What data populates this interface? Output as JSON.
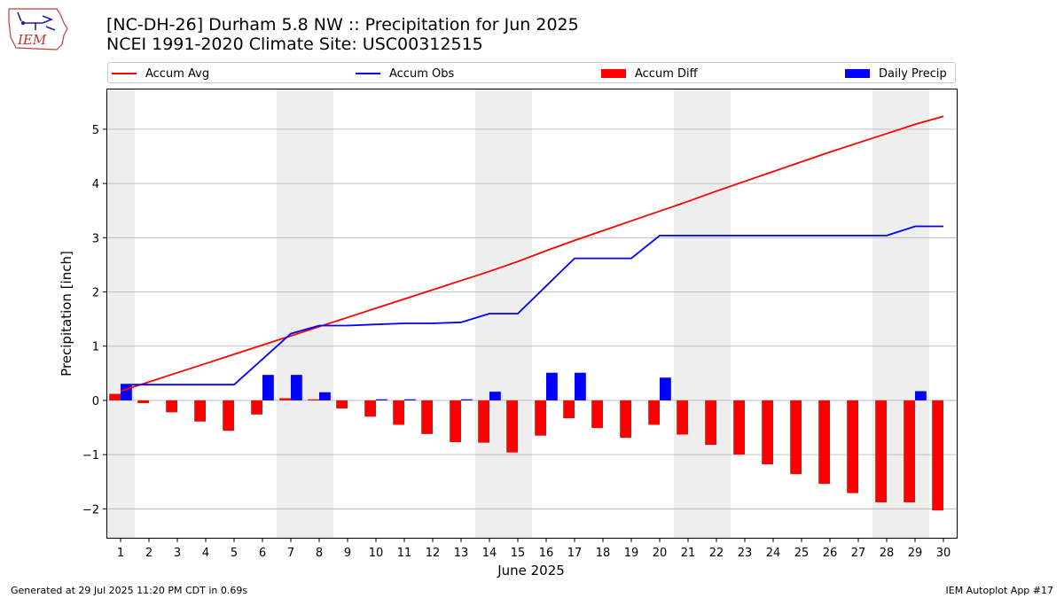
{
  "header": {
    "title_line1": "[NC-DH-26] Durham 5.8 NW :: Precipitation for Jun 2025",
    "title_line2": "NCEI 1991-2020 Climate Site: USC00312515",
    "logo_text": "IEM"
  },
  "footer": {
    "left": "Generated at 29 Jul 2025 11:20 PM CDT in 0.69s",
    "right": "IEM Autoplot App #17"
  },
  "colors": {
    "accum_avg": "#ff0000",
    "accum_obs": "#0000ff",
    "accum_diff": "#ff0000",
    "daily_precip": "#0000ff",
    "weekend_shade": "#eeeeee",
    "grid": "#b0b0b0"
  },
  "chart_data": {
    "type": "bar",
    "xlabel": "June 2025",
    "ylabel": "Precipitation [inch]",
    "xlim": [
      0.5,
      30.5
    ],
    "ylim": [
      -2.55,
      5.75
    ],
    "yticks": [
      -2,
      -1,
      0,
      1,
      2,
      3,
      4,
      5
    ],
    "ytick_labels": [
      "−2",
      "−1",
      "0",
      "1",
      "2",
      "3",
      "4",
      "5"
    ],
    "grid": "horizontal",
    "legend_position": "top, above plot",
    "days": [
      1,
      2,
      3,
      4,
      5,
      6,
      7,
      8,
      9,
      10,
      11,
      12,
      13,
      14,
      15,
      16,
      17,
      18,
      19,
      20,
      21,
      22,
      23,
      24,
      25,
      26,
      27,
      28,
      29,
      30
    ],
    "xtick_labels": [
      "1",
      "2",
      "3",
      "4",
      "5",
      "6",
      "7",
      "8",
      "9",
      "10",
      "11",
      "12",
      "13",
      "14",
      "15",
      "16",
      "17",
      "18",
      "19",
      "20",
      "21",
      "22",
      "23",
      "24",
      "25",
      "26",
      "27",
      "28",
      "29",
      "30"
    ],
    "weekend_days": [
      1,
      7,
      8,
      14,
      15,
      21,
      22,
      28,
      29
    ],
    "series": [
      {
        "name": "Accum Avg",
        "type": "line",
        "values": [
          0.17,
          0.34,
          0.51,
          0.68,
          0.85,
          1.02,
          1.19,
          1.36,
          1.53,
          1.7,
          1.87,
          2.04,
          2.21,
          2.38,
          2.56,
          2.76,
          2.95,
          3.13,
          3.31,
          3.49,
          3.67,
          3.86,
          4.04,
          4.22,
          4.4,
          4.58,
          4.75,
          4.92,
          5.09,
          5.24
        ]
      },
      {
        "name": "Accum Obs",
        "type": "line",
        "values": [
          0.29,
          0.29,
          0.29,
          0.29,
          0.29,
          0.76,
          1.23,
          1.38,
          1.38,
          1.4,
          1.42,
          1.42,
          1.44,
          1.6,
          1.6,
          2.11,
          2.62,
          2.62,
          2.62,
          3.04,
          3.04,
          3.04,
          3.04,
          3.04,
          3.04,
          3.04,
          3.04,
          3.04,
          3.21,
          3.21
        ]
      },
      {
        "name": "Accum Diff",
        "type": "bar",
        "values": [
          0.12,
          -0.05,
          -0.22,
          -0.39,
          -0.56,
          -0.26,
          0.04,
          0.02,
          -0.15,
          -0.3,
          -0.45,
          -0.62,
          -0.77,
          -0.78,
          -0.96,
          -0.65,
          -0.33,
          -0.51,
          -0.69,
          -0.45,
          -0.63,
          -0.82,
          -1.0,
          -1.18,
          -1.36,
          -1.54,
          -1.71,
          -1.88,
          -1.88,
          -2.03
        ]
      },
      {
        "name": "Daily Precip",
        "type": "bar",
        "values": [
          0.29,
          0.0,
          0.0,
          0.0,
          0.0,
          0.47,
          0.47,
          0.15,
          0.0,
          0.02,
          0.02,
          0.0,
          0.02,
          0.16,
          0.0,
          0.51,
          0.51,
          0.0,
          0.0,
          0.42,
          0.0,
          0.0,
          0.0,
          0.0,
          0.0,
          0.0,
          0.0,
          0.0,
          0.17,
          0.0
        ]
      }
    ]
  }
}
